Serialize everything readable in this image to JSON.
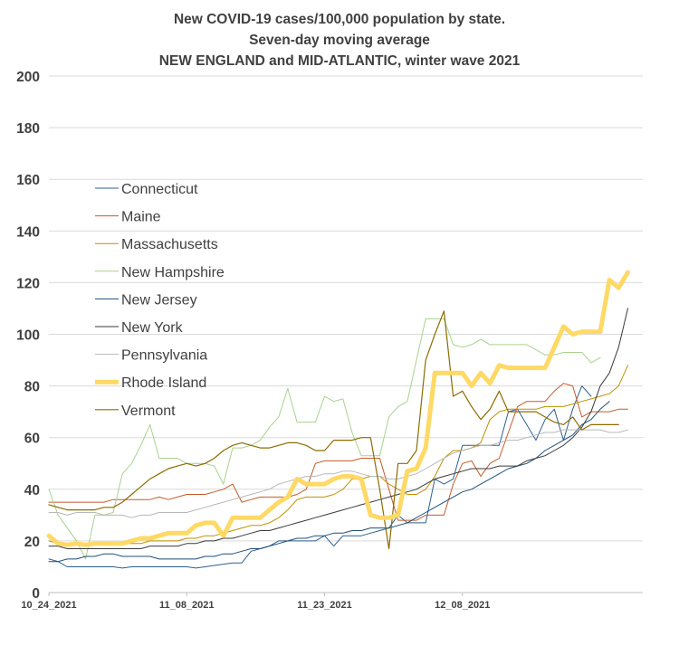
{
  "chart_data": {
    "type": "line",
    "title_lines": [
      "New COVID-19 cases/100,000 population by state.",
      "Seven-day moving average",
      "NEW ENGLAND and MID-ATLANTIC, winter wave 2021"
    ],
    "xlabel": "",
    "ylabel": "",
    "ylim": [
      0,
      200
    ],
    "ytick_step": 20,
    "ytick_labels": [
      "0",
      "20",
      "40",
      "60",
      "80",
      "100",
      "120",
      "140",
      "160",
      "180",
      "200"
    ],
    "x_start_date": "10_24_2021",
    "x_tick_labels": [
      "10_24_2021",
      "11_08_2021",
      "11_23_2021",
      "12_08_2021"
    ],
    "x_tick_index": [
      0,
      15,
      30,
      45
    ],
    "grid": "horizontal",
    "legend_position": "left-inside",
    "series": [
      {
        "name": "Connecticut",
        "color": "#2e5f8f",
        "width": 1,
        "values": [
          13,
          12,
          10,
          10,
          10,
          10,
          10,
          10,
          9.5,
          10,
          10,
          10,
          10,
          10,
          10,
          10,
          9.5,
          10,
          10.5,
          11,
          11.5,
          11.5,
          16,
          17,
          18,
          20,
          20,
          20,
          20,
          20,
          22,
          18,
          22,
          22,
          22,
          23,
          24,
          25,
          30,
          27,
          27,
          27,
          44,
          42,
          44,
          57,
          57,
          57,
          57,
          57,
          70,
          71,
          65,
          59,
          67,
          71,
          59,
          71,
          80,
          76
        ]
      },
      {
        "name": "Maine",
        "color": "#c55a28",
        "width": 1,
        "values": [
          35,
          35,
          35,
          35,
          35,
          35,
          35,
          36,
          36,
          36,
          36,
          36,
          37,
          36,
          37,
          38,
          38,
          38,
          39,
          40,
          42,
          35,
          36,
          37,
          37,
          37,
          37,
          38,
          40,
          50,
          51,
          51,
          51,
          51,
          52,
          52,
          52,
          40,
          28,
          28,
          28,
          30,
          30,
          30,
          42,
          50,
          51,
          45,
          50,
          52,
          62,
          72,
          74,
          74,
          74,
          78,
          81,
          80,
          68,
          70,
          70,
          70,
          71,
          71
        ]
      },
      {
        "name": "Massachusetts",
        "color": "#bf9000",
        "width": 1,
        "values": [
          20,
          19,
          19,
          19,
          19,
          19,
          19,
          19,
          19,
          19,
          19,
          20,
          20,
          20,
          20,
          21,
          21,
          22,
          22,
          23,
          24,
          25,
          26,
          26,
          27,
          29,
          32,
          36,
          37,
          37,
          37,
          38,
          40,
          44,
          44,
          45,
          45,
          42,
          40,
          38,
          38,
          40,
          45,
          52,
          55,
          55,
          56,
          58,
          67,
          70,
          71,
          71,
          71,
          71,
          72,
          72,
          72,
          73,
          74,
          75,
          76,
          77,
          80,
          88
        ]
      },
      {
        "name": "New Hampshire",
        "color": "#a9d18e",
        "width": 1,
        "values": [
          40,
          30,
          25,
          20,
          13,
          30,
          30,
          31,
          46,
          50,
          57,
          65,
          52,
          52,
          52,
          50,
          50,
          50,
          49,
          42,
          56,
          56,
          57,
          59,
          64,
          68,
          79,
          66,
          66,
          66,
          76,
          74,
          75,
          62,
          53,
          53,
          53,
          68,
          72,
          74,
          90,
          106,
          106,
          106,
          96,
          95,
          96,
          98,
          96,
          96,
          96,
          96,
          96,
          94,
          92,
          92,
          93,
          93,
          93,
          89,
          91
        ]
      },
      {
        "name": "New Jersey",
        "color": "#1f4e79",
        "width": 1,
        "values": [
          12,
          12,
          13,
          13,
          14,
          14,
          15,
          15,
          14,
          14,
          14,
          14,
          13,
          13,
          13,
          13,
          13,
          14,
          14,
          15,
          15,
          16,
          17,
          17,
          18,
          19,
          20,
          21,
          21,
          22,
          22,
          23,
          23,
          24,
          24,
          25,
          25,
          25,
          26,
          27,
          29,
          31,
          33,
          35,
          37,
          39,
          40,
          42,
          44,
          46,
          48,
          49,
          50,
          52,
          55,
          57,
          59,
          61,
          65,
          67,
          71,
          74
        ]
      },
      {
        "name": "New York",
        "color": "#3a3a3a",
        "width": 1,
        "values": [
          18,
          18,
          17,
          17,
          17,
          17,
          17,
          17,
          17,
          17,
          17,
          18,
          18,
          18,
          18,
          19,
          19,
          20,
          20,
          21,
          21,
          22,
          23,
          24,
          24,
          25,
          26,
          27,
          28,
          29,
          30,
          31,
          32,
          33,
          34,
          35,
          36,
          37,
          38,
          39,
          40,
          42,
          44,
          45,
          46,
          47,
          48,
          48,
          48,
          49,
          49,
          49,
          51,
          52,
          53,
          55,
          57,
          60,
          64,
          70,
          80,
          85,
          95,
          110
        ]
      },
      {
        "name": "Pennsylvania",
        "color": "#b8b8b8",
        "width": 1,
        "values": [
          31,
          31,
          30,
          31,
          31,
          31,
          30,
          30,
          30,
          29,
          30,
          30,
          31,
          31,
          31,
          31,
          32,
          33,
          34,
          35,
          36,
          37,
          38,
          39,
          40,
          42,
          43,
          44,
          45,
          45,
          46,
          46,
          47,
          47,
          46,
          45,
          45,
          44,
          44,
          45,
          46,
          48,
          50,
          52,
          54,
          55,
          56,
          57,
          57,
          58,
          59,
          59,
          60,
          61,
          62,
          62,
          63,
          63,
          63,
          63,
          63,
          62,
          62,
          63
        ]
      },
      {
        "name": "Rhode Island",
        "color": "#ffd966",
        "width": 5,
        "values": [
          22,
          19,
          18.5,
          19,
          18.5,
          19,
          19,
          19,
          19,
          20,
          21,
          21,
          22,
          23,
          23,
          23,
          26,
          27,
          27,
          22,
          29,
          29,
          29,
          29,
          32,
          35,
          37,
          44,
          42,
          42,
          42,
          44,
          45,
          45,
          44,
          30,
          29,
          29,
          30,
          47,
          48,
          56,
          85,
          85,
          85,
          85,
          80,
          85,
          81,
          88,
          87,
          87,
          87,
          87,
          87,
          95,
          103,
          100,
          101,
          101,
          101,
          121,
          118,
          124
        ]
      },
      {
        "name": "Vermont",
        "color": "#8c6c00",
        "width": 1.2,
        "values": [
          34,
          33,
          32,
          32,
          32,
          32,
          33,
          33,
          35,
          38,
          41,
          44,
          46,
          48,
          49,
          50,
          49,
          50,
          52,
          55,
          57,
          58,
          57,
          56,
          56,
          57,
          58,
          58,
          57,
          55,
          55,
          59,
          59,
          59,
          60,
          60,
          40,
          17,
          50,
          50,
          55,
          90,
          100,
          109,
          76,
          78,
          72,
          67,
          71,
          78,
          70,
          70,
          70,
          70,
          68,
          66,
          65,
          68,
          63,
          65,
          65,
          65,
          65
        ]
      }
    ]
  }
}
